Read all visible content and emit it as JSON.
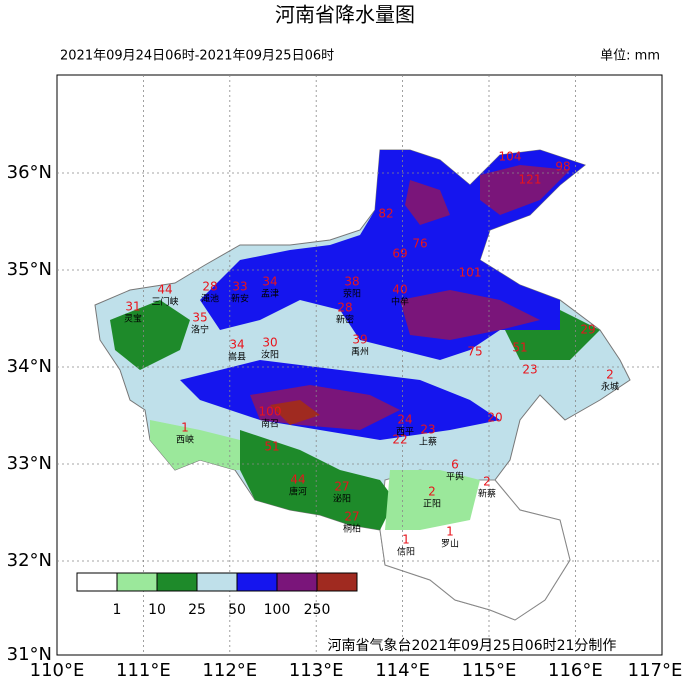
{
  "header": {
    "title": "河南省降水量图",
    "period": "2021年09月24日06时-2021年09月25日06时",
    "unit": "单位: mm"
  },
  "axes": {
    "lat_labels": [
      "36°N",
      "35°N",
      "34°N",
      "33°N",
      "32°N",
      "31°N"
    ],
    "lon_labels": [
      "110°E",
      "111°E",
      "112°E",
      "113°E",
      "114°E",
      "115°E",
      "116°E",
      "117°E"
    ]
  },
  "legend": {
    "labels": [
      "1",
      "10",
      "25",
      "50",
      "100",
      "250"
    ]
  },
  "stations": [
    {
      "value": "44",
      "name": "三门峡"
    },
    {
      "value": "31",
      "name": "灵宝"
    },
    {
      "value": "28",
      "name": "渑池"
    },
    {
      "value": "33",
      "name": "新安"
    },
    {
      "value": "34",
      "name": "孟津"
    },
    {
      "value": "38",
      "name": "荥阳"
    },
    {
      "value": "40",
      "name": "中牟"
    },
    {
      "value": "104",
      "name": ""
    },
    {
      "value": "98",
      "name": ""
    },
    {
      "value": "121",
      "name": ""
    },
    {
      "value": "82",
      "name": ""
    },
    {
      "value": "69",
      "name": ""
    },
    {
      "value": "76",
      "name": ""
    },
    {
      "value": "101",
      "name": ""
    },
    {
      "value": "28",
      "name": "新密"
    },
    {
      "value": "39",
      "name": "禹州"
    },
    {
      "value": "75",
      "name": ""
    },
    {
      "value": "51",
      "name": ""
    },
    {
      "value": "29",
      "name": ""
    },
    {
      "value": "23",
      "name": ""
    },
    {
      "value": "2",
      "name": "永城"
    },
    {
      "value": "34",
      "name": "嵩县"
    },
    {
      "value": "30",
      "name": "汝阳"
    },
    {
      "value": "35",
      "name": "洛宁"
    },
    {
      "value": "1",
      "name": "西峡"
    },
    {
      "value": "100",
      "name": "南召"
    },
    {
      "value": "51",
      "name": ""
    },
    {
      "value": "44",
      "name": "唐河"
    },
    {
      "value": "27",
      "name": "泌阳"
    },
    {
      "value": "27",
      "name": "桐柏"
    },
    {
      "value": "22",
      "name": ""
    },
    {
      "value": "24",
      "name": "西平"
    },
    {
      "value": "23",
      "name": "上蔡"
    },
    {
      "value": "20",
      "name": ""
    },
    {
      "value": "2",
      "name": "正阳"
    },
    {
      "value": "6",
      "name": "平舆"
    },
    {
      "value": "2",
      "name": "新蔡"
    },
    {
      "value": "1",
      "name": "信阳"
    },
    {
      "value": "1",
      "name": "罗山"
    }
  ],
  "footer": "河南省气象台2021年09月25日06时21分制作"
}
